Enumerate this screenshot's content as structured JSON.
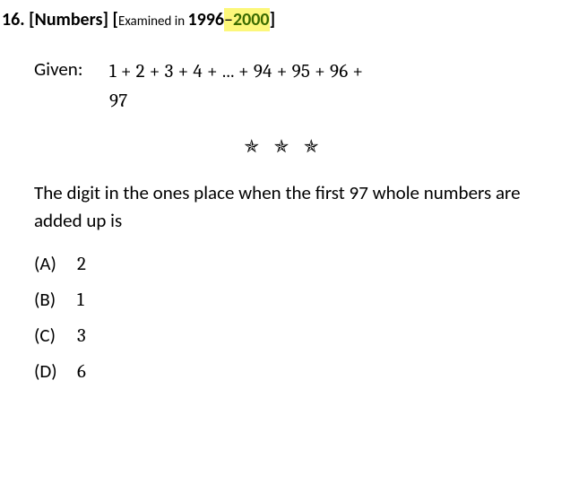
{
  "header": {
    "question_number": "16.",
    "category": "[Numbers]",
    "bracket_open": "[",
    "examined_label": "Examined in ",
    "year_start": "1996",
    "dash": "–",
    "year_end": "2000",
    "bracket_close": "]"
  },
  "given": {
    "label": "Given:",
    "expression_line1": "1 + 2 + 3 + 4 + ... + 94 + 95 + 96 +",
    "expression_line2": "97"
  },
  "stars": "✯ ✯ ✯",
  "question_text": "The digit in the ones place when the first 97 whole numbers are added up is",
  "options": [
    {
      "label": "(A)",
      "value": "2"
    },
    {
      "label": "(B)",
      "value": "1"
    },
    {
      "label": "(C)",
      "value": "3"
    },
    {
      "label": "(D)",
      "value": "6"
    }
  ],
  "styling": {
    "highlight_bg": "#fcf77a",
    "year2_color": "#3a6b00",
    "body_font_size": 21,
    "header_font_size": 20,
    "background": "#ffffff",
    "text_color": "#000000"
  }
}
